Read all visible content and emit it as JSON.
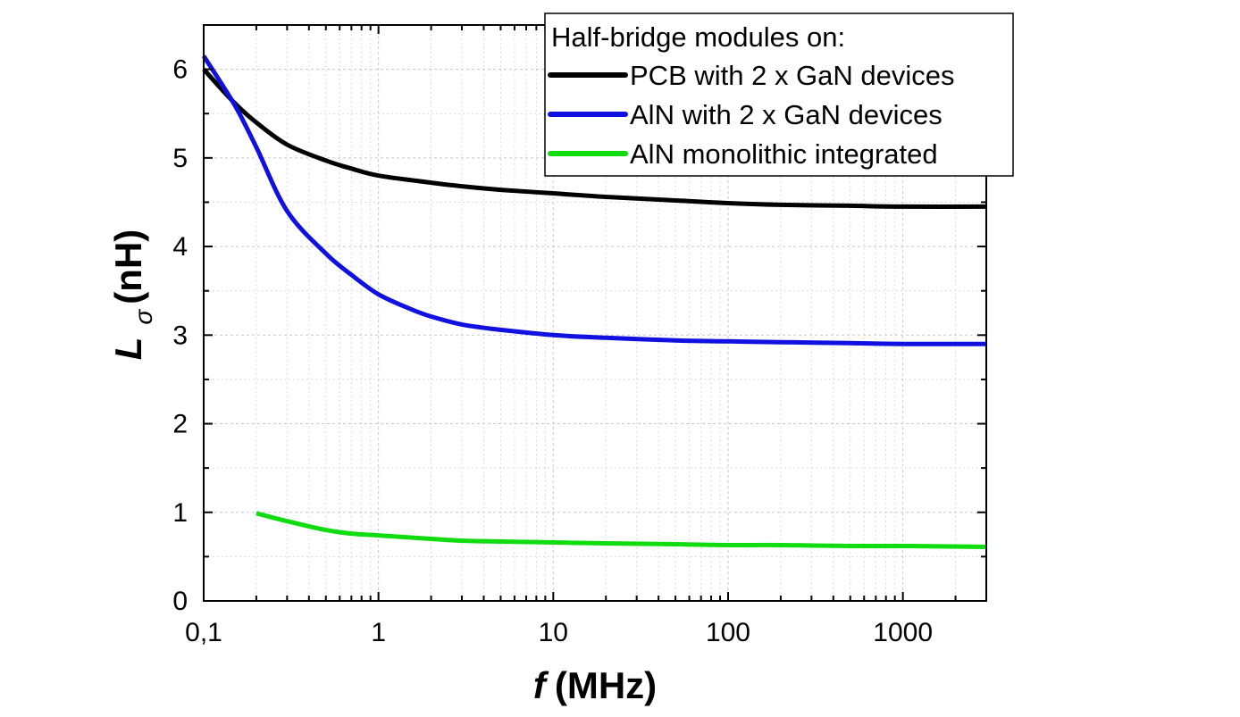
{
  "chart_data": {
    "type": "line",
    "xlabel_symbol": "f",
    "xlabel_unit": "(MHz)",
    "ylabel_symbol": "L",
    "ylabel_subscript": "σ",
    "ylabel_unit": "(nH)",
    "x_scale": "log",
    "xlim": [
      0.1,
      3000
    ],
    "ylim": [
      0,
      6.5
    ],
    "x_ticks": [
      0.1,
      1,
      10,
      100,
      1000
    ],
    "x_tick_labels": [
      "0,1",
      "1",
      "10",
      "100",
      "1000"
    ],
    "y_ticks": [
      0,
      1,
      2,
      3,
      4,
      5,
      6
    ],
    "y_tick_labels": [
      "0",
      "1",
      "2",
      "3",
      "4",
      "5",
      "6"
    ],
    "grid": true,
    "legend_title": "Half-bridge modules on:",
    "legend_position": "top-right",
    "series": [
      {
        "name": "PCB with 2 x GaN devices",
        "color": "#000000",
        "x": [
          0.1,
          0.15,
          0.2,
          0.3,
          0.5,
          0.7,
          1,
          2,
          3,
          5,
          10,
          20,
          50,
          100,
          200,
          500,
          1000,
          3000
        ],
        "y": [
          6.0,
          5.62,
          5.4,
          5.15,
          4.97,
          4.88,
          4.8,
          4.72,
          4.68,
          4.64,
          4.6,
          4.56,
          4.52,
          4.49,
          4.47,
          4.46,
          4.45,
          4.45
        ]
      },
      {
        "name": "AlN with 2 x GaN devices",
        "color": "#1010e0",
        "x": [
          0.1,
          0.15,
          0.2,
          0.3,
          0.5,
          0.7,
          1,
          1.5,
          2,
          3,
          5,
          10,
          20,
          50,
          100,
          200,
          500,
          1000,
          3000
        ],
        "y": [
          6.15,
          5.6,
          5.12,
          4.4,
          3.92,
          3.68,
          3.46,
          3.3,
          3.21,
          3.12,
          3.06,
          3.0,
          2.97,
          2.94,
          2.93,
          2.92,
          2.91,
          2.9,
          2.9
        ]
      },
      {
        "name": "AlN monolithic integrated",
        "color": "#10dc10",
        "x": [
          0.2,
          0.3,
          0.5,
          0.7,
          1,
          2,
          3,
          5,
          10,
          20,
          50,
          100,
          200,
          500,
          1000,
          3000
        ],
        "y": [
          0.99,
          0.9,
          0.8,
          0.76,
          0.74,
          0.7,
          0.68,
          0.67,
          0.66,
          0.65,
          0.64,
          0.63,
          0.63,
          0.62,
          0.62,
          0.61
        ]
      }
    ]
  },
  "legend_labels": [
    "PCB with 2 x GaN devices",
    "AlN with 2 x GaN devices",
    "AlN monolithic integrated"
  ]
}
